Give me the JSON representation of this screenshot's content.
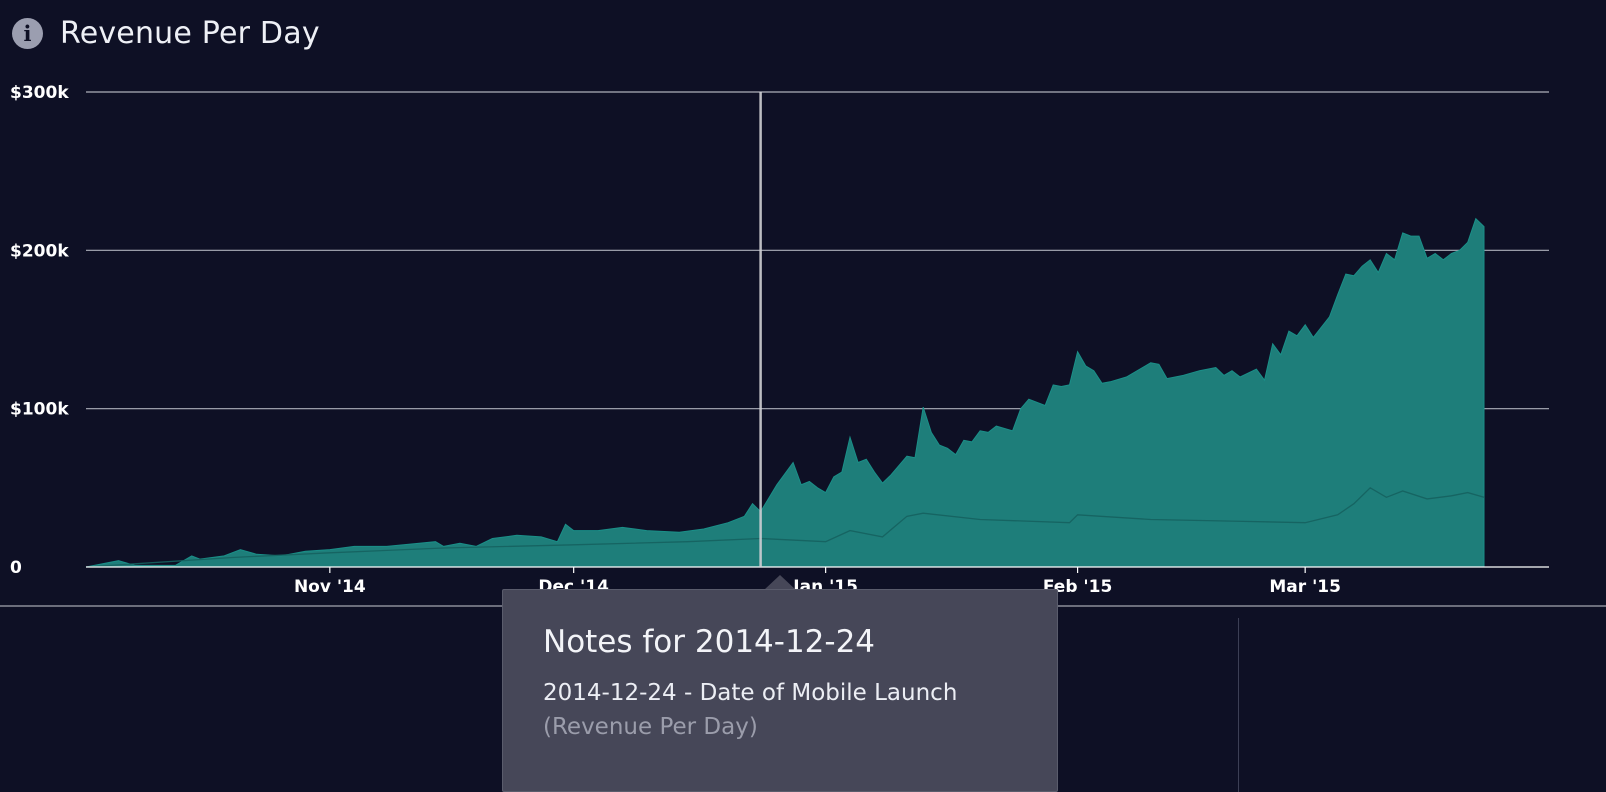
{
  "header": {
    "title": "Revenue Per Day",
    "info_icon": "info-icon"
  },
  "tooltip": {
    "title": "Notes for 2014-12-24",
    "note": "2014-12-24 - Date of Mobile Launch",
    "metric": "(Revenue Per Day)"
  },
  "colors": {
    "background": "#0e1025",
    "area_fill": "#1e7e7a",
    "area_stroke": "#1a8f88",
    "grid": "#c9cbd4",
    "marker": "#d0d0d4",
    "tooltip_bg": "#464758"
  },
  "chart_data": {
    "type": "area",
    "title": "Revenue Per Day",
    "xlabel": "",
    "ylabel": "",
    "x_range": [
      "2014-10-02",
      "2015-03-31"
    ],
    "ylim": [
      0,
      300000
    ],
    "yticks": [
      {
        "value": 0,
        "label": "0"
      },
      {
        "value": 100000,
        "label": "$100k"
      },
      {
        "value": 200000,
        "label": "$200k"
      },
      {
        "value": 300000,
        "label": "$300k"
      }
    ],
    "xticks": [
      {
        "date": "2014-11-01",
        "label": "Nov '14"
      },
      {
        "date": "2014-12-01",
        "label": "Dec '14"
      },
      {
        "date": "2015-01-01",
        "label": "Jan '15"
      },
      {
        "date": "2015-02-01",
        "label": "Feb '15"
      },
      {
        "date": "2015-03-01",
        "label": "Mar '15"
      }
    ],
    "grid": true,
    "annotation": {
      "date": "2014-12-24",
      "label": "Date of Mobile Launch"
    },
    "series": [
      {
        "name": "",
        "points": [
          [
            "2014-10-02",
            0
          ],
          [
            "2014-10-06",
            4000
          ],
          [
            "2014-10-08",
            1000
          ],
          [
            "2014-10-13",
            1000
          ],
          [
            "2014-10-15",
            7000
          ],
          [
            "2014-10-16",
            5000
          ],
          [
            "2014-10-19",
            7000
          ],
          [
            "2014-10-21",
            11000
          ],
          [
            "2014-10-23",
            8000
          ],
          [
            "2014-10-26",
            7000
          ],
          [
            "2014-10-29",
            10000
          ],
          [
            "2014-11-01",
            11000
          ],
          [
            "2014-11-04",
            13000
          ],
          [
            "2014-11-08",
            13000
          ],
          [
            "2014-11-12",
            15000
          ],
          [
            "2014-11-14",
            16000
          ],
          [
            "2014-11-15",
            13000
          ],
          [
            "2014-11-17",
            15000
          ],
          [
            "2014-11-19",
            13000
          ],
          [
            "2014-11-21",
            18000
          ],
          [
            "2014-11-24",
            20000
          ],
          [
            "2014-11-27",
            19000
          ],
          [
            "2014-11-29",
            16000
          ],
          [
            "2014-11-30",
            27000
          ],
          [
            "2014-12-01",
            23000
          ],
          [
            "2014-12-04",
            23000
          ],
          [
            "2014-12-07",
            25000
          ],
          [
            "2014-12-10",
            23000
          ],
          [
            "2014-12-14",
            22000
          ],
          [
            "2014-12-17",
            24000
          ],
          [
            "2014-12-20",
            28000
          ],
          [
            "2014-12-22",
            32000
          ],
          [
            "2014-12-23",
            40000
          ],
          [
            "2014-12-24",
            35000
          ],
          [
            "2014-12-26",
            52000
          ],
          [
            "2014-12-28",
            66000
          ],
          [
            "2014-12-29",
            52000
          ],
          [
            "2014-12-30",
            54000
          ],
          [
            "2014-12-31",
            50000
          ],
          [
            "2015-01-01",
            47000
          ],
          [
            "2015-01-02",
            57000
          ],
          [
            "2015-01-03",
            60000
          ],
          [
            "2015-01-04",
            82000
          ],
          [
            "2015-01-05",
            66000
          ],
          [
            "2015-01-06",
            68000
          ],
          [
            "2015-01-07",
            60000
          ],
          [
            "2015-01-08",
            53000
          ],
          [
            "2015-01-09",
            58000
          ],
          [
            "2015-01-11",
            70000
          ],
          [
            "2015-01-12",
            69000
          ],
          [
            "2015-01-13",
            101000
          ],
          [
            "2015-01-14",
            85000
          ],
          [
            "2015-01-15",
            77000
          ],
          [
            "2015-01-16",
            75000
          ],
          [
            "2015-01-17",
            71000
          ],
          [
            "2015-01-18",
            80000
          ],
          [
            "2015-01-19",
            79000
          ],
          [
            "2015-01-20",
            86000
          ],
          [
            "2015-01-21",
            85000
          ],
          [
            "2015-01-22",
            89000
          ],
          [
            "2015-01-24",
            86000
          ],
          [
            "2015-01-25",
            100000
          ],
          [
            "2015-01-26",
            106000
          ],
          [
            "2015-01-28",
            102000
          ],
          [
            "2015-01-29",
            115000
          ],
          [
            "2015-01-30",
            114000
          ],
          [
            "2015-01-31",
            115000
          ],
          [
            "2015-02-01",
            136000
          ],
          [
            "2015-02-02",
            127000
          ],
          [
            "2015-02-03",
            124000
          ],
          [
            "2015-02-04",
            116000
          ],
          [
            "2015-02-05",
            117000
          ],
          [
            "2015-02-07",
            120000
          ],
          [
            "2015-02-09",
            126000
          ],
          [
            "2015-02-10",
            129000
          ],
          [
            "2015-02-11",
            128000
          ],
          [
            "2015-02-12",
            119000
          ],
          [
            "2015-02-14",
            121000
          ],
          [
            "2015-02-16",
            124000
          ],
          [
            "2015-02-18",
            126000
          ],
          [
            "2015-02-19",
            121000
          ],
          [
            "2015-02-20",
            124000
          ],
          [
            "2015-02-21",
            120000
          ],
          [
            "2015-02-23",
            125000
          ],
          [
            "2015-02-24",
            118000
          ],
          [
            "2015-02-25",
            141000
          ],
          [
            "2015-02-26",
            134000
          ],
          [
            "2015-02-27",
            149000
          ],
          [
            "2015-02-28",
            146000
          ],
          [
            "2015-03-01",
            153000
          ],
          [
            "2015-03-02",
            145000
          ],
          [
            "2015-03-04",
            158000
          ],
          [
            "2015-03-05",
            172000
          ],
          [
            "2015-03-06",
            185000
          ],
          [
            "2015-03-07",
            184000
          ],
          [
            "2015-03-08",
            190000
          ],
          [
            "2015-03-09",
            194000
          ],
          [
            "2015-03-10",
            186000
          ],
          [
            "2015-03-11",
            198000
          ],
          [
            "2015-03-12",
            194000
          ],
          [
            "2015-03-13",
            211000
          ],
          [
            "2015-03-14",
            209000
          ],
          [
            "2015-03-15",
            209000
          ],
          [
            "2015-03-16",
            195000
          ],
          [
            "2015-03-17",
            198000
          ],
          [
            "2015-03-18",
            194000
          ],
          [
            "2015-03-19",
            198000
          ],
          [
            "2015-03-20",
            200000
          ],
          [
            "2015-03-21",
            205000
          ],
          [
            "2015-03-22",
            220000
          ],
          [
            "2015-03-23",
            215000
          ]
        ]
      },
      {
        "name": "",
        "points": [
          [
            "2014-10-02",
            0
          ],
          [
            "2014-10-20",
            6000
          ],
          [
            "2014-11-01",
            9000
          ],
          [
            "2014-11-15",
            12000
          ],
          [
            "2014-12-01",
            14000
          ],
          [
            "2014-12-15",
            16000
          ],
          [
            "2014-12-24",
            18000
          ],
          [
            "2015-01-01",
            16000
          ],
          [
            "2015-01-04",
            23000
          ],
          [
            "2015-01-08",
            19000
          ],
          [
            "2015-01-11",
            32000
          ],
          [
            "2015-01-13",
            34000
          ],
          [
            "2015-01-20",
            30000
          ],
          [
            "2015-01-31",
            28000
          ],
          [
            "2015-02-01",
            33000
          ],
          [
            "2015-02-10",
            30000
          ],
          [
            "2015-02-20",
            29000
          ],
          [
            "2015-03-01",
            28000
          ],
          [
            "2015-03-05",
            33000
          ],
          [
            "2015-03-07",
            40000
          ],
          [
            "2015-03-09",
            50000
          ],
          [
            "2015-03-11",
            44000
          ],
          [
            "2015-03-13",
            48000
          ],
          [
            "2015-03-16",
            43000
          ],
          [
            "2015-03-19",
            45000
          ],
          [
            "2015-03-21",
            47000
          ],
          [
            "2015-03-23",
            44000
          ]
        ]
      }
    ]
  }
}
